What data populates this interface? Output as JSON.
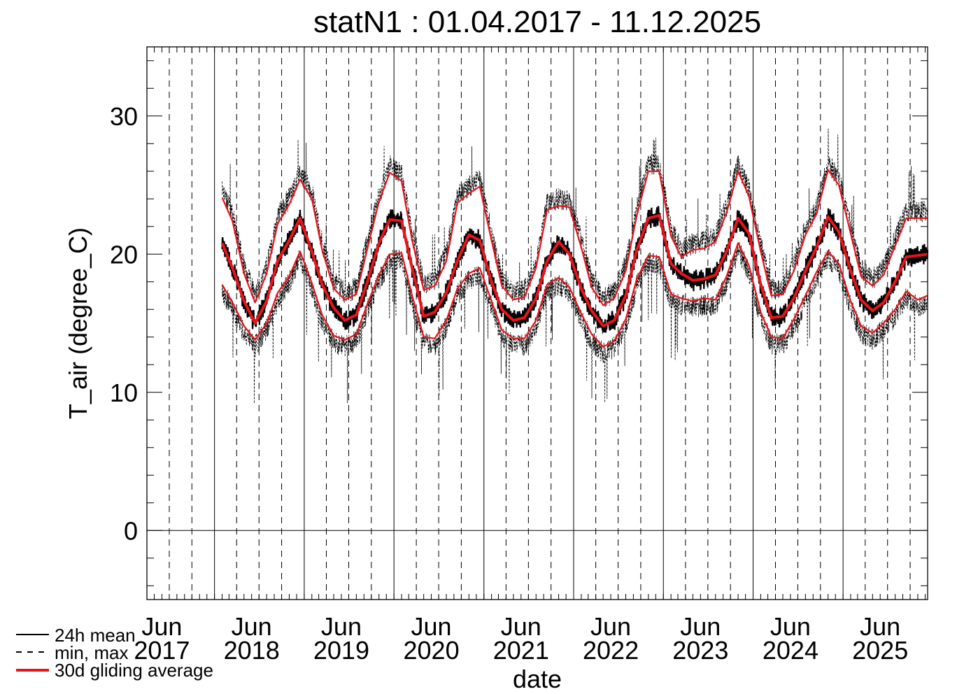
{
  "chart_data": {
    "type": "line",
    "title": "statN1 : 01.04.2017 - 11.12.2025",
    "xlabel": "date",
    "ylabel": "T_air (degree_C)",
    "ylim": [
      -5,
      35
    ],
    "y_ticks": [
      0,
      10,
      20,
      30
    ],
    "x_ticks": [
      {
        "month": "Jun",
        "year": "2017"
      },
      {
        "month": "Jun",
        "year": "2018"
      },
      {
        "month": "Jun",
        "year": "2019"
      },
      {
        "month": "Jun",
        "year": "2020"
      },
      {
        "month": "Jun",
        "year": "2021"
      },
      {
        "month": "Jun",
        "year": "2022"
      },
      {
        "month": "Jun",
        "year": "2023"
      },
      {
        "month": "Jun",
        "year": "2024"
      },
      {
        "month": "Jun",
        "year": "2025"
      }
    ],
    "x_range": [
      "2017-04-01",
      "2025-12-11"
    ],
    "gridlines": "solid at year boundaries, dashed at quarter boundaries",
    "legend_position": "bottom-left",
    "legend": [
      {
        "label": "24h mean",
        "style": "solid",
        "color": "#000000"
      },
      {
        "label": "min, max",
        "style": "dashed",
        "color": "#000000"
      },
      {
        "label": "30d gliding average",
        "style": "solid",
        "color": "#e8141c"
      }
    ],
    "series": [
      {
        "name": "30d gliding average",
        "x": [
          "2018-02-01",
          "2018-03-15",
          "2018-05-01",
          "2018-06-15",
          "2018-08-01",
          "2018-09-15",
          "2018-11-01",
          "2018-12-15",
          "2019-02-01",
          "2019-03-15",
          "2019-05-01",
          "2019-06-15",
          "2019-08-01",
          "2019-09-15",
          "2019-11-01",
          "2019-12-15",
          "2020-02-01",
          "2020-03-15",
          "2020-05-01",
          "2020-06-15",
          "2020-08-01",
          "2020-09-15",
          "2020-11-01",
          "2020-12-15",
          "2021-02-01",
          "2021-03-15",
          "2021-05-01",
          "2021-06-15",
          "2021-08-01",
          "2021-09-15",
          "2021-11-01",
          "2021-12-15",
          "2022-02-01",
          "2022-03-15",
          "2022-05-01",
          "2022-06-15",
          "2022-08-01",
          "2022-09-15",
          "2022-11-01",
          "2022-12-15",
          "2023-02-01",
          "2023-03-15",
          "2023-05-01",
          "2023-06-15",
          "2023-08-01",
          "2023-09-15",
          "2023-11-01",
          "2023-12-15",
          "2024-02-01",
          "2024-03-15",
          "2024-05-01",
          "2024-06-15",
          "2024-08-01",
          "2024-09-15",
          "2024-11-01",
          "2024-12-15",
          "2025-02-01",
          "2025-03-15",
          "2025-05-01",
          "2025-06-15",
          "2025-08-01",
          "2025-09-15",
          "2025-11-01",
          "2025-12-11"
        ],
        "y": [
          20.8,
          19.0,
          16.6,
          15.0,
          16.6,
          19.5,
          21.0,
          22.6,
          20.2,
          17.8,
          16.1,
          15.2,
          15.6,
          18.0,
          20.8,
          22.5,
          22.4,
          19.0,
          15.5,
          15.8,
          17.2,
          19.5,
          21.4,
          21.0,
          18.0,
          16.0,
          15.2,
          15.4,
          16.8,
          19.5,
          20.9,
          20.0,
          17.5,
          15.9,
          14.8,
          15.2,
          17.0,
          20.3,
          22.6,
          22.8,
          19.3,
          18.6,
          18.1,
          18.2,
          18.5,
          20.2,
          22.6,
          21.5,
          17.8,
          15.4,
          15.5,
          16.8,
          18.8,
          20.5,
          22.7,
          21.6,
          18.8,
          16.7,
          15.9,
          16.5,
          18.0,
          19.8,
          19.9,
          20.0
        ]
      },
      {
        "name": "",
        "x": [
          "2018-02-01",
          "2018-03-15",
          "2018-05-01",
          "2018-06-15",
          "2018-08-01",
          "2018-09-15",
          "2018-11-01",
          "2018-12-15",
          "2019-02-01",
          "2019-03-15",
          "2019-05-01",
          "2019-06-15",
          "2019-08-01",
          "2019-09-15",
          "2019-11-01",
          "2019-12-15",
          "2020-02-01",
          "2020-03-15",
          "2020-05-01",
          "2020-06-15",
          "2020-08-01",
          "2020-09-15",
          "2020-11-01",
          "2020-12-15",
          "2021-02-01",
          "2021-03-15",
          "2021-05-01",
          "2021-06-15",
          "2021-08-01",
          "2021-09-15",
          "2021-11-01",
          "2021-12-15",
          "2022-02-01",
          "2022-03-15",
          "2022-05-01",
          "2022-06-15",
          "2022-08-01",
          "2022-09-15",
          "2022-11-01",
          "2022-12-15",
          "2023-02-01",
          "2023-03-15",
          "2023-05-01",
          "2023-06-15",
          "2023-08-01",
          "2023-09-15",
          "2023-11-01",
          "2023-12-15",
          "2024-02-01",
          "2024-03-15",
          "2024-05-01",
          "2024-06-15",
          "2024-08-01",
          "2024-09-15",
          "2024-11-01",
          "2024-12-15",
          "2025-02-01",
          "2025-03-15",
          "2025-05-01",
          "2025-06-15",
          "2025-08-01",
          "2025-09-15",
          "2025-11-01",
          "2025-12-11"
        ],
        "y": [
          24.1,
          22.4,
          18.6,
          16.5,
          18.6,
          22.2,
          23.6,
          25.4,
          24.0,
          20.3,
          17.5,
          16.7,
          17.1,
          20.4,
          23.8,
          25.9,
          25.3,
          21.0,
          17.4,
          17.7,
          19.5,
          23.7,
          24.4,
          24.9,
          21.0,
          17.7,
          16.7,
          16.9,
          19.0,
          23.2,
          23.5,
          23.4,
          20.5,
          17.6,
          16.3,
          16.8,
          18.8,
          22.8,
          26.0,
          26.0,
          21.3,
          19.8,
          20.3,
          20.4,
          20.9,
          23.0,
          26.0,
          24.2,
          20.2,
          17.0,
          17.1,
          18.8,
          21.4,
          22.9,
          26.1,
          25.0,
          21.5,
          18.4,
          17.7,
          18.5,
          20.6,
          22.6,
          22.6,
          22.6
        ]
      },
      {
        "name": "",
        "x": [
          "2018-02-01",
          "2018-03-15",
          "2018-05-01",
          "2018-06-15",
          "2018-08-01",
          "2018-09-15",
          "2018-11-01",
          "2018-12-15",
          "2019-02-01",
          "2019-03-15",
          "2019-05-01",
          "2019-06-15",
          "2019-08-01",
          "2019-09-15",
          "2019-11-01",
          "2019-12-15",
          "2020-02-01",
          "2020-03-15",
          "2020-05-01",
          "2020-06-15",
          "2020-08-01",
          "2020-09-15",
          "2020-11-01",
          "2020-12-15",
          "2021-02-01",
          "2021-03-15",
          "2021-05-01",
          "2021-06-15",
          "2021-08-01",
          "2021-09-15",
          "2021-11-01",
          "2021-12-15",
          "2022-02-01",
          "2022-03-15",
          "2022-05-01",
          "2022-06-15",
          "2022-08-01",
          "2022-09-15",
          "2022-11-01",
          "2022-12-15",
          "2023-02-01",
          "2023-03-15",
          "2023-05-01",
          "2023-06-15",
          "2023-08-01",
          "2023-09-15",
          "2023-11-01",
          "2023-12-15",
          "2024-02-01",
          "2024-03-15",
          "2024-05-01",
          "2024-06-15",
          "2024-08-01",
          "2024-09-15",
          "2024-11-01",
          "2024-12-15",
          "2025-02-01",
          "2025-03-15",
          "2025-05-01",
          "2025-06-15",
          "2025-08-01",
          "2025-09-15",
          "2025-11-01",
          "2025-12-11"
        ],
        "y": [
          17.8,
          16.5,
          14.8,
          13.8,
          15.0,
          17.2,
          18.4,
          20.2,
          17.9,
          15.6,
          14.1,
          13.8,
          14.2,
          16.4,
          18.5,
          20.0,
          20.1,
          17.0,
          14.0,
          13.9,
          15.2,
          17.5,
          18.6,
          19.0,
          16.6,
          14.5,
          13.9,
          13.9,
          15.2,
          17.8,
          18.3,
          17.6,
          15.7,
          14.2,
          13.3,
          13.7,
          15.3,
          18.2,
          19.9,
          19.8,
          17.1,
          16.8,
          16.6,
          16.8,
          16.7,
          18.4,
          20.8,
          19.2,
          15.8,
          14.0,
          13.9,
          15.3,
          17.0,
          18.7,
          20.2,
          19.3,
          16.6,
          14.8,
          14.3,
          15.0,
          16.0,
          17.3,
          16.7,
          17.0
        ]
      }
    ]
  }
}
